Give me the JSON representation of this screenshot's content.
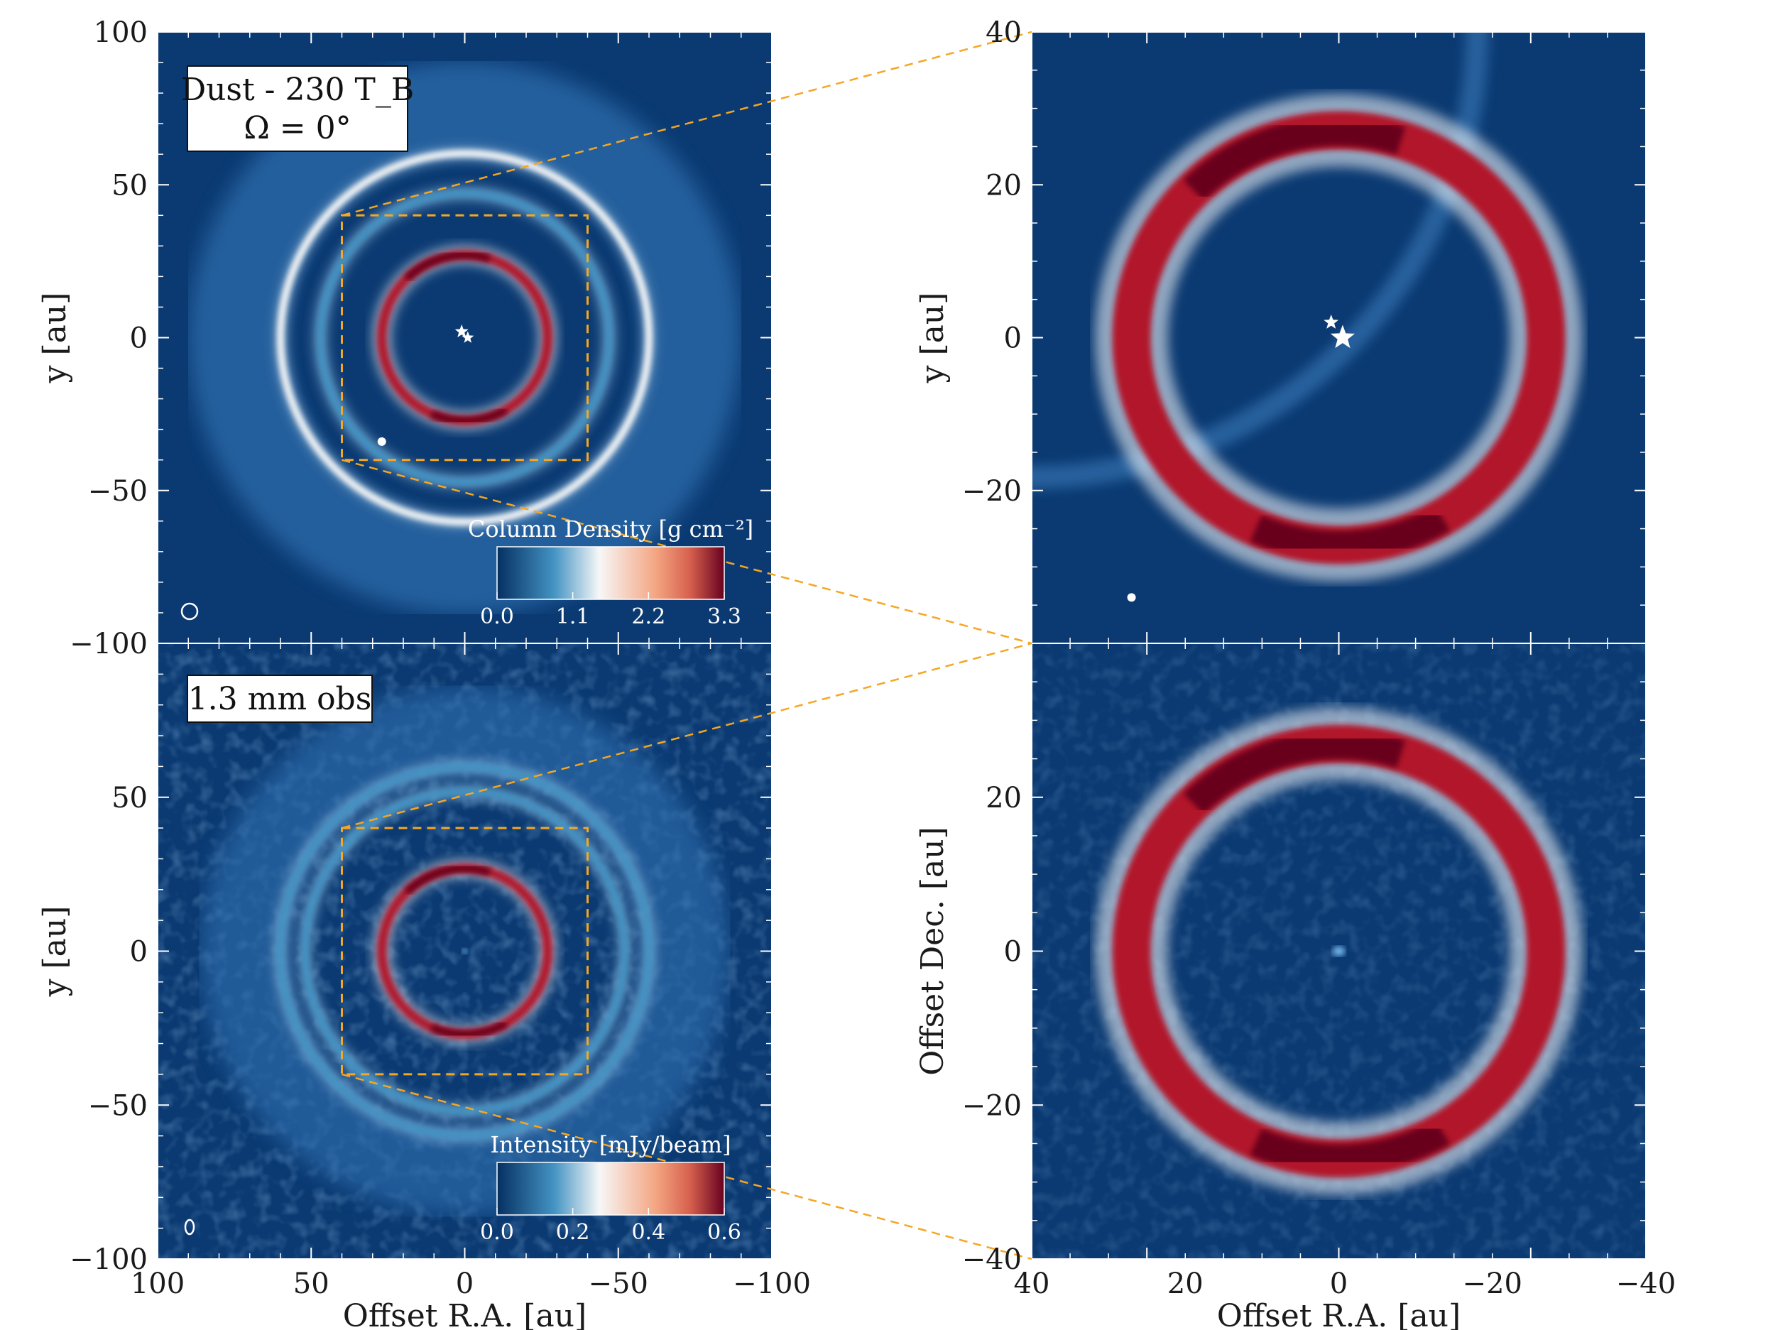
{
  "colors": {
    "background": "#0b3a72",
    "ring_red": "#b2182b",
    "ring_dark_red": "#67001f",
    "ring_white": "#f7f7f7",
    "ring_blue": "#4393c3",
    "zoom_lines": "#f5a623"
  },
  "chart_data": [
    {
      "type": "heatmap",
      "panel": "top-left",
      "label_box": [
        "Dust - 230 T_B",
        "Ω = 0°"
      ],
      "xlim": [
        100,
        -100
      ],
      "ylim": [
        -100,
        100
      ],
      "ylabel": "y [au]",
      "xticks": [],
      "yticks": [
        "100",
        "50",
        "0",
        "−50",
        "−100"
      ],
      "colorbar": {
        "label": "Column Density [g cm⁻²]",
        "ticks": [
          "0.0",
          "1.1",
          "2.2",
          "3.3"
        ],
        "range": [
          0.0,
          3.3
        ]
      },
      "zoom_box": [
        40,
        -40,
        -40,
        40
      ],
      "rings_au": [
        {
          "radius": 27,
          "level": "high"
        },
        {
          "radius": 47,
          "level": "low"
        },
        {
          "radius": 60,
          "level": "medium"
        }
      ],
      "stars_au": [
        [
          1,
          2
        ],
        [
          -1,
          0
        ]
      ],
      "planet_au": [
        27,
        -34
      ]
    },
    {
      "type": "heatmap",
      "panel": "top-right",
      "xlim": [
        40,
        -40
      ],
      "ylim": [
        -40,
        40
      ],
      "ylabel": "y [au]",
      "xticks": [],
      "yticks": [
        "40",
        "20",
        "0",
        "−20"
      ],
      "rings_au": [
        {
          "radius": 27,
          "level": "high"
        }
      ],
      "stars_au": [
        [
          1,
          2
        ],
        [
          -0.5,
          0
        ]
      ],
      "planet_au": [
        27,
        -34
      ]
    },
    {
      "type": "heatmap",
      "panel": "bottom-left",
      "label_box": [
        "1.3 mm obs"
      ],
      "xlim": [
        100,
        -100
      ],
      "ylim": [
        -100,
        100
      ],
      "xlabel": "Offset R.A. [au]",
      "ylabel": "y [au]",
      "xticks": [
        "100",
        "50",
        "0",
        "−50",
        "−100"
      ],
      "yticks": [
        "50",
        "0",
        "−50",
        "−100"
      ],
      "colorbar": {
        "label": "Intensity [mJy/beam]",
        "ticks": [
          "0.0",
          "0.2",
          "0.4",
          "0.6"
        ],
        "range": [
          0.0,
          0.6
        ]
      },
      "zoom_box": [
        40,
        -40,
        -40,
        40
      ],
      "rings_au": [
        {
          "radius": 27,
          "level": "high"
        },
        {
          "radius": 52,
          "level": "low"
        },
        {
          "radius": 60,
          "level": "low"
        }
      ]
    },
    {
      "type": "heatmap",
      "panel": "bottom-right",
      "xlim": [
        40,
        -40
      ],
      "ylim": [
        -40,
        40
      ],
      "xlabel": "Offset R.A. [au]",
      "ylabel": "Offset Dec. [au]",
      "xticks": [
        "40",
        "20",
        "0",
        "−20",
        "−40"
      ],
      "yticks": [
        "20",
        "0",
        "−20",
        "−40"
      ],
      "rings_au": [
        {
          "radius": 27,
          "level": "high"
        }
      ]
    }
  ]
}
